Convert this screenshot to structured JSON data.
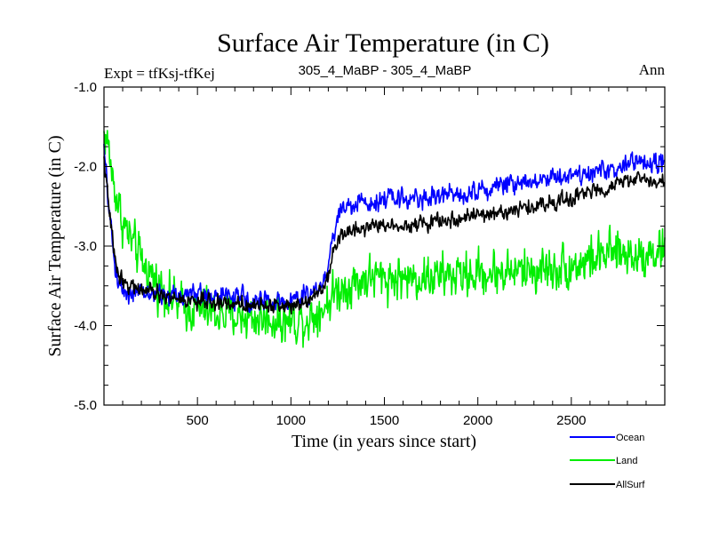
{
  "chart_data": {
    "type": "line",
    "title": "Surface Air Temperature (in C)",
    "subtitle_left": "Expt = tfKsj-tfKej",
    "subtitle_center": "305_4_MaBP - 305_4_MaBP",
    "subtitle_right": "Ann",
    "xlabel": "Time (in years since start)",
    "ylabel": "Surface Air Temperature (in C)",
    "xlim": [
      0,
      3000
    ],
    "ylim": [
      -5.0,
      -1.0
    ],
    "x_ticks": [
      500,
      1000,
      1500,
      2000,
      2500
    ],
    "x_tick_labels": [
      "500",
      "1000",
      "1500",
      "2000",
      "2500"
    ],
    "y_ticks": [
      -1.0,
      -2.0,
      -3.0,
      -4.0,
      -5.0
    ],
    "y_tick_labels": [
      "-1.0",
      "-2.0",
      "-3.0",
      "-4.0",
      "-5.0"
    ],
    "grid": false,
    "legend_position": "bottom-right",
    "noise_step_years": 3,
    "series": [
      {
        "name": "Ocean",
        "color": "#0000ff",
        "noise": 0.09,
        "anchors_x": [
          0,
          30,
          60,
          100,
          150,
          250,
          350,
          500,
          700,
          900,
          1000,
          1100,
          1180,
          1220,
          1260,
          1300,
          1500,
          1700,
          2000,
          2200,
          2500,
          2700,
          2850,
          3000
        ],
        "anchors_y": [
          -1.8,
          -2.6,
          -3.3,
          -3.55,
          -3.6,
          -3.6,
          -3.62,
          -3.6,
          -3.65,
          -3.7,
          -3.7,
          -3.6,
          -3.45,
          -2.95,
          -2.55,
          -2.5,
          -2.4,
          -2.4,
          -2.3,
          -2.2,
          -2.1,
          -2.05,
          -1.95,
          -1.95
        ]
      },
      {
        "name": "Land",
        "color": "#00ee00",
        "noise": 0.2,
        "anchors_x": [
          0,
          20,
          50,
          100,
          200,
          300,
          400,
          600,
          800,
          1000,
          1100,
          1180,
          1250,
          1400,
          1700,
          2000,
          2300,
          2500,
          2700,
          2850,
          3000
        ],
        "anchors_y": [
          -1.6,
          -1.7,
          -2.2,
          -2.7,
          -3.2,
          -3.5,
          -3.75,
          -3.85,
          -3.9,
          -3.95,
          -3.9,
          -3.75,
          -3.55,
          -3.4,
          -3.4,
          -3.35,
          -3.3,
          -3.25,
          -3.1,
          -3.1,
          -3.05
        ]
      },
      {
        "name": "AllSurf",
        "color": "#000000",
        "noise": 0.07,
        "anchors_x": [
          0,
          30,
          60,
          100,
          200,
          350,
          500,
          700,
          900,
          1000,
          1100,
          1180,
          1230,
          1270,
          1400,
          1700,
          2000,
          2200,
          2500,
          2700,
          2850,
          3000
        ],
        "anchors_y": [
          -1.9,
          -2.6,
          -3.2,
          -3.45,
          -3.55,
          -3.65,
          -3.7,
          -3.72,
          -3.75,
          -3.75,
          -3.65,
          -3.5,
          -3.05,
          -2.85,
          -2.75,
          -2.72,
          -2.62,
          -2.55,
          -2.4,
          -2.25,
          -2.15,
          -2.2
        ]
      }
    ]
  }
}
